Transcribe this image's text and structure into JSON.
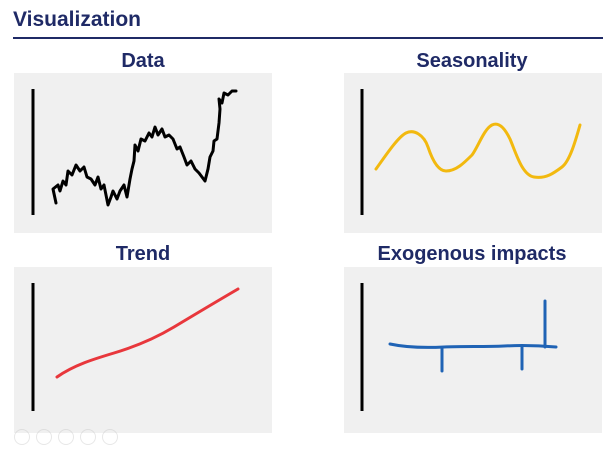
{
  "slide": {
    "title": "Visualization"
  },
  "panels": [
    {
      "id": "data",
      "title": "Data",
      "line_color": "#000000"
    },
    {
      "id": "seasonality",
      "title": "Seasonality",
      "line_color": "#f2b90f"
    },
    {
      "id": "trend",
      "title": "Trend",
      "line_color": "#e8373c"
    },
    {
      "id": "exogenous",
      "title": "Exogenous impacts",
      "line_color": "#1f63b5"
    }
  ],
  "colors": {
    "title": "#1f2a66",
    "panel_bg": "#f0f0f0",
    "axis": "#000000"
  },
  "nav": {
    "icons": [
      "dot-icon",
      "dot-icon",
      "dot-icon",
      "dot-icon",
      "dot-icon"
    ]
  }
}
